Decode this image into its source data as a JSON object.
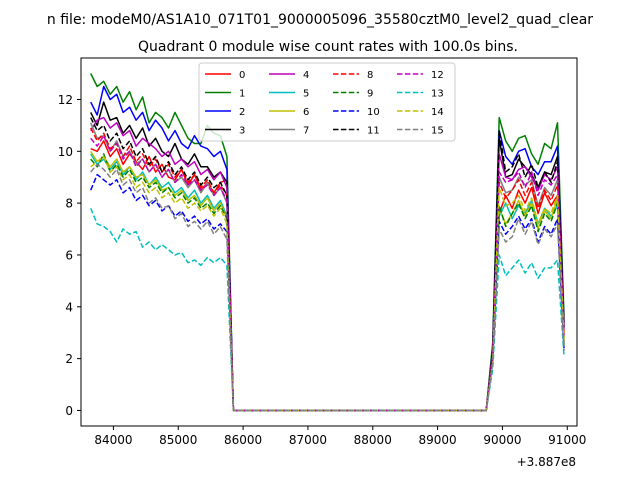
{
  "chart_data": {
    "type": "line",
    "suptitle": "n file: modeM0/AS1A10_071T01_9000005096_35580cztM0_level2_quad_clear",
    "title": "Quadrant 0 module wise count rates with 100.0s bins.",
    "xlabel": "",
    "ylabel": "",
    "offset_text": "+3.887e8",
    "xlim": [
      83500,
      91150
    ],
    "ylim": [
      -0.6,
      13.6
    ],
    "xticks": [
      84000,
      85000,
      86000,
      87000,
      88000,
      89000,
      90000,
      91000
    ],
    "xtick_labels": [
      "84000",
      "85000",
      "86000",
      "87000",
      "88000",
      "89000",
      "90000",
      "91000"
    ],
    "yticks": [
      0,
      2,
      4,
      6,
      8,
      10,
      12
    ],
    "ytick_labels": [
      "0",
      "2",
      "4",
      "6",
      "8",
      "10",
      "12"
    ],
    "grid": false,
    "legend": {
      "placement": "top-center",
      "columns": 4
    },
    "x_start": 83650,
    "x_step": 100,
    "series": [
      {
        "name": "0",
        "color": "#ff0000",
        "dash": "solid",
        "first": [
          10.1,
          10.0,
          10.4,
          9.8,
          10.1,
          9.5,
          9.9,
          9.6,
          9.3,
          9.8,
          9.2,
          9.5,
          9.0,
          8.9,
          9.3,
          8.7,
          9.1,
          8.5,
          8.8,
          8.4,
          8.8,
          8.9
        ],
        "second": [
          2.1,
          7.6,
          8.3,
          7.8,
          8.5,
          8.0,
          8.6,
          7.6,
          8.4,
          7.9,
          8.3,
          3.0
        ]
      },
      {
        "name": "1",
        "color": "#008000",
        "dash": "solid",
        "first": [
          13.0,
          12.5,
          12.7,
          12.2,
          12.5,
          11.9,
          12.3,
          11.6,
          12.1,
          11.1,
          11.5,
          11.3,
          10.9,
          11.5,
          11.0,
          10.5,
          10.3,
          10.3,
          11.0,
          10.7,
          10.6,
          9.8
        ],
        "second": [
          2.6,
          11.3,
          10.4,
          10.0,
          10.5,
          10.6,
          9.9,
          9.5,
          10.3,
          10.1,
          11.1,
          3.6
        ]
      },
      {
        "name": "2",
        "color": "#0000ff",
        "dash": "solid",
        "first": [
          11.9,
          11.4,
          12.5,
          12.0,
          12.2,
          11.5,
          11.7,
          11.2,
          11.5,
          10.8,
          11.2,
          10.9,
          10.4,
          10.8,
          10.3,
          10.1,
          10.6,
          10.2,
          10.1,
          9.8,
          10.0,
          9.3
        ],
        "second": [
          2.4,
          10.8,
          9.8,
          9.5,
          10.0,
          10.1,
          9.4,
          9.1,
          9.6,
          9.6,
          10.2,
          3.4
        ]
      },
      {
        "name": "3",
        "color": "#000000",
        "dash": "solid",
        "first": [
          11.5,
          11.0,
          11.9,
          11.2,
          11.3,
          10.7,
          11.0,
          10.5,
          10.9,
          10.2,
          10.5,
          10.0,
          9.8,
          10.3,
          9.7,
          9.5,
          9.9,
          9.4,
          9.4,
          9.0,
          9.2,
          8.8
        ],
        "second": [
          2.3,
          10.5,
          9.0,
          9.1,
          9.7,
          9.4,
          9.1,
          8.6,
          9.2,
          9.1,
          9.8,
          3.3
        ]
      },
      {
        "name": "4",
        "color": "#bf00bf",
        "dash": "solid",
        "first": [
          10.8,
          11.2,
          11.3,
          10.9,
          11.1,
          10.6,
          10.8,
          10.2,
          10.5,
          10.3,
          10.1,
          9.8,
          10.0,
          9.5,
          9.7,
          9.4,
          9.6,
          9.1,
          9.3,
          8.9,
          9.2,
          8.6
        ],
        "second": [
          2.2,
          9.9,
          9.0,
          8.9,
          9.3,
          9.4,
          9.0,
          8.5,
          9.1,
          8.9,
          9.4,
          3.1
        ]
      },
      {
        "name": "5",
        "color": "#00bfbf",
        "dash": "solid",
        "first": [
          9.9,
          9.5,
          9.7,
          9.3,
          9.6,
          9.1,
          9.4,
          8.9,
          9.2,
          8.7,
          9.0,
          8.6,
          8.8,
          8.4,
          8.6,
          8.2,
          8.5,
          8.0,
          8.3,
          7.8,
          8.1,
          7.5
        ],
        "second": [
          2.0,
          7.5,
          8.0,
          7.4,
          7.9,
          7.6,
          8.1,
          7.2,
          7.8,
          7.5,
          7.9,
          2.7
        ]
      },
      {
        "name": "6",
        "color": "#bfbf00",
        "dash": "solid",
        "first": [
          10.0,
          9.6,
          9.8,
          9.4,
          9.7,
          9.2,
          9.4,
          9.0,
          9.1,
          8.7,
          8.9,
          8.5,
          8.6,
          8.3,
          8.5,
          8.1,
          8.3,
          7.9,
          8.2,
          7.7,
          8.0,
          7.4
        ],
        "second": [
          2.0,
          7.8,
          7.2,
          7.6,
          8.1,
          7.5,
          8.0,
          7.0,
          7.7,
          7.4,
          8.2,
          2.6
        ]
      },
      {
        "name": "7",
        "color": "#808080",
        "dash": "solid",
        "first": [
          11.1,
          10.5,
          10.6,
          10.0,
          10.4,
          9.8,
          10.0,
          9.5,
          9.7,
          9.2,
          9.5,
          9.0,
          9.3,
          8.8,
          9.0,
          8.6,
          8.9,
          8.4,
          8.8,
          8.3,
          8.6,
          8.0
        ],
        "second": [
          2.1,
          9.0,
          8.4,
          8.5,
          9.0,
          8.7,
          8.9,
          7.9,
          8.6,
          8.3,
          8.9,
          2.8
        ]
      },
      {
        "name": "8",
        "color": "#ff0000",
        "dash": "dashed",
        "first": [
          10.9,
          10.4,
          10.7,
          10.1,
          10.3,
          9.8,
          10.2,
          9.6,
          9.9,
          9.4,
          9.7,
          9.2,
          9.5,
          9.0,
          9.3,
          8.8,
          9.1,
          8.6,
          8.9,
          8.4,
          8.7,
          8.3
        ],
        "second": [
          2.2,
          8.8,
          8.2,
          8.5,
          8.9,
          8.3,
          8.8,
          7.8,
          8.5,
          8.1,
          8.7,
          2.9
        ]
      },
      {
        "name": "9",
        "color": "#008000",
        "dash": "dashed",
        "first": [
          9.7,
          9.4,
          9.9,
          9.2,
          9.5,
          9.0,
          9.3,
          8.8,
          9.0,
          8.6,
          8.8,
          8.4,
          8.6,
          8.2,
          8.4,
          8.0,
          8.2,
          7.8,
          8.0,
          7.6,
          7.9,
          7.4
        ],
        "second": [
          2.0,
          7.9,
          7.1,
          7.6,
          8.0,
          7.4,
          7.9,
          6.9,
          7.6,
          7.3,
          8.0,
          2.5
        ]
      },
      {
        "name": "10",
        "color": "#0000ff",
        "dash": "dashed",
        "first": [
          8.5,
          9.1,
          8.9,
          8.7,
          8.9,
          8.4,
          8.6,
          8.1,
          8.3,
          7.9,
          8.1,
          7.7,
          7.9,
          7.5,
          7.7,
          7.3,
          7.5,
          7.2,
          7.4,
          7.0,
          7.2,
          6.9
        ],
        "second": [
          1.9,
          7.3,
          6.8,
          7.1,
          7.5,
          7.0,
          7.4,
          6.5,
          7.1,
          6.8,
          7.4,
          2.4
        ]
      },
      {
        "name": "11",
        "color": "#000000",
        "dash": "dashed",
        "first": [
          11.3,
          10.8,
          11.0,
          10.4,
          10.7,
          10.1,
          10.4,
          9.8,
          10.1,
          9.5,
          9.8,
          9.2,
          9.6,
          9.1,
          9.4,
          8.9,
          9.2,
          8.7,
          9.0,
          8.6,
          8.8,
          8.3
        ],
        "second": [
          2.2,
          10.8,
          9.2,
          9.4,
          9.9,
          9.0,
          9.5,
          8.6,
          9.2,
          8.8,
          9.6,
          3.2
        ]
      },
      {
        "name": "12",
        "color": "#bf00bf",
        "dash": "dashed",
        "first": [
          10.5,
          10.2,
          10.6,
          10.0,
          10.3,
          9.7,
          10.0,
          9.4,
          9.7,
          9.2,
          9.5,
          9.0,
          9.3,
          8.8,
          9.1,
          8.7,
          8.9,
          8.5,
          8.7,
          8.3,
          8.6,
          8.1
        ],
        "second": [
          2.1,
          9.2,
          8.8,
          8.9,
          9.2,
          8.6,
          9.2,
          8.3,
          8.9,
          8.7,
          9.1,
          2.9
        ]
      },
      {
        "name": "13",
        "color": "#00bfbf",
        "dash": "dashed",
        "first": [
          7.8,
          7.2,
          7.1,
          6.9,
          6.5,
          7.0,
          6.8,
          6.9,
          6.3,
          6.5,
          6.2,
          6.4,
          6.2,
          6.0,
          6.1,
          5.7,
          5.8,
          5.6,
          5.9,
          5.7,
          5.9,
          5.6
        ],
        "second": [
          1.6,
          6.0,
          5.2,
          5.5,
          5.8,
          5.3,
          5.7,
          5.1,
          5.5,
          5.5,
          5.8,
          2.1
        ]
      },
      {
        "name": "14",
        "color": "#bfbf00",
        "dash": "dashed",
        "first": [
          9.4,
          9.6,
          9.8,
          9.2,
          9.4,
          8.9,
          9.1,
          8.6,
          8.8,
          8.4,
          8.6,
          8.2,
          8.4,
          8.0,
          8.2,
          7.8,
          8.0,
          7.7,
          7.9,
          7.5,
          7.8,
          7.2
        ],
        "second": [
          1.9,
          8.6,
          7.9,
          8.0,
          8.3,
          7.7,
          8.2,
          7.2,
          7.8,
          7.6,
          8.3,
          2.7
        ]
      },
      {
        "name": "15",
        "color": "#808080",
        "dash": "dashed",
        "first": [
          9.2,
          9.5,
          9.3,
          9.0,
          9.3,
          8.7,
          8.9,
          8.4,
          8.6,
          8.0,
          8.2,
          7.8,
          7.9,
          7.4,
          7.6,
          7.1,
          7.3,
          7.0,
          7.3,
          6.8,
          7.1,
          6.6
        ],
        "second": [
          1.8,
          7.0,
          6.5,
          6.7,
          7.4,
          6.8,
          7.3,
          6.4,
          7.0,
          6.7,
          7.2,
          2.3
        ]
      }
    ],
    "gap_start": 85850,
    "gap_end": 89750,
    "second_start": 89850,
    "last_x": 90750
  }
}
